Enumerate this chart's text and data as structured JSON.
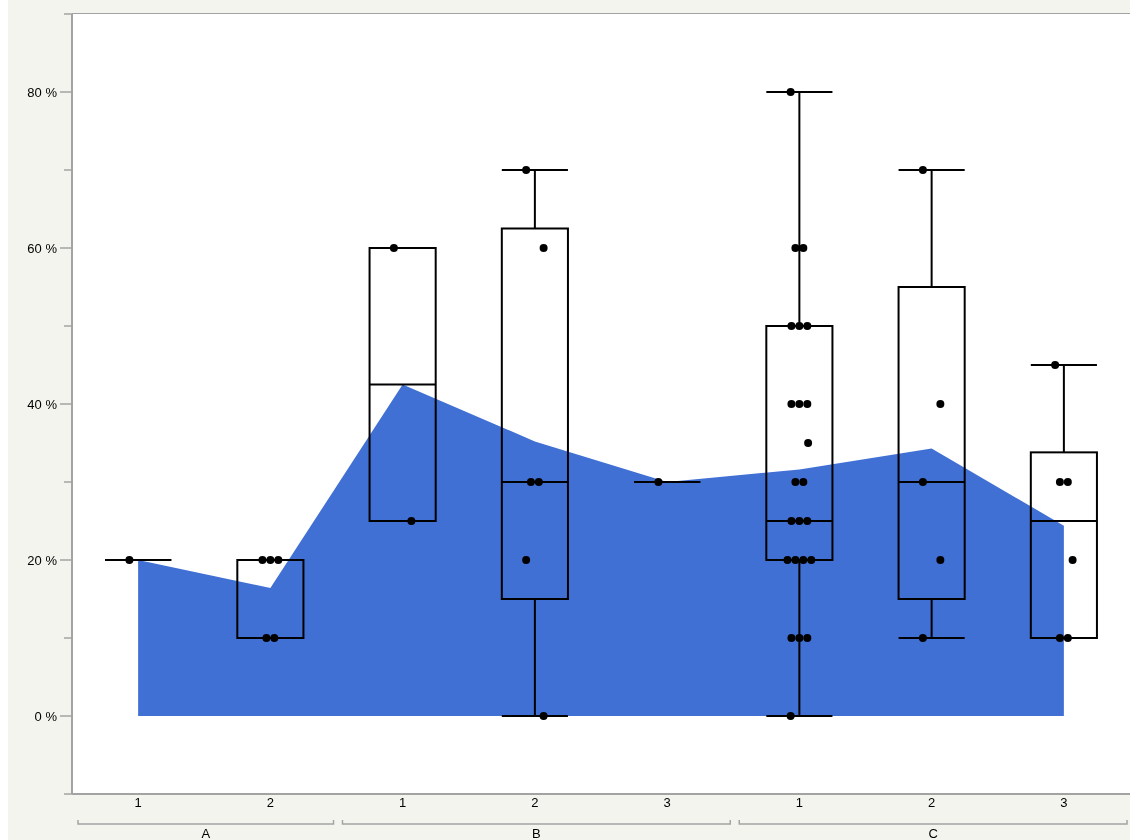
{
  "chart_data": {
    "type": "box",
    "categories": [
      "1",
      "2",
      "1",
      "2",
      "3",
      "1",
      "2",
      "3"
    ],
    "ylim": [
      -10,
      90
    ],
    "yticks": [
      {
        "value": -10,
        "label": null
      },
      {
        "value": 0,
        "label": "0 %"
      },
      {
        "value": 10,
        "label": null
      },
      {
        "value": 20,
        "label": "20 %"
      },
      {
        "value": 30,
        "label": null
      },
      {
        "value": 40,
        "label": "40 %"
      },
      {
        "value": 50,
        "label": null
      },
      {
        "value": 60,
        "label": "60 %"
      },
      {
        "value": 70,
        "label": null
      },
      {
        "value": 80,
        "label": "80 %"
      },
      {
        "value": 90,
        "label": null
      }
    ],
    "annotations": [
      "A",
      "B",
      "C"
    ],
    "series": [
      {
        "type": "area",
        "color": "#4170d4",
        "values": [
          20,
          16.4,
          42.5,
          35.2,
          30,
          31.6,
          34.3,
          24.4
        ]
      },
      {
        "color": "#000000",
        "boxes": [
          {
            "low": 20,
            "q1": 20,
            "median": 20,
            "q3": 20,
            "high": 20,
            "outliers": [
              20
            ]
          },
          {
            "low": 10,
            "q1": 10,
            "median": 20,
            "q3": 20,
            "high": 20,
            "outliers": [
              20,
              20,
              20,
              10,
              10
            ]
          },
          {
            "low": 25,
            "q1": 25,
            "median": 42.5,
            "q3": 60,
            "high": 60,
            "outliers": [
              60,
              25
            ]
          },
          {
            "low": 0,
            "q1": 15,
            "median": 30,
            "q3": 62.5,
            "high": 70,
            "outliers": [
              70,
              60,
              30,
              30,
              20,
              0
            ]
          },
          {
            "low": 30,
            "q1": 30,
            "median": 30,
            "q3": 30,
            "high": 30,
            "outliers": [
              30
            ]
          },
          {
            "low": 0,
            "q1": 20,
            "median": 25,
            "q3": 50,
            "high": 80,
            "outliers": [
              80,
              60,
              60,
              50,
              50,
              50,
              40,
              40,
              40,
              35,
              30,
              30,
              25,
              25,
              25,
              20,
              20,
              20,
              20,
              10,
              10,
              10,
              0
            ]
          },
          {
            "low": 10,
            "q1": 15,
            "median": 30,
            "q3": 55,
            "high": 70,
            "outliers": [
              70,
              40,
              30,
              20,
              10
            ]
          },
          {
            "low": 10,
            "q1": 10,
            "median": 25,
            "q3": 33.8,
            "high": 45,
            "outliers": [
              45,
              30,
              30,
              20,
              10,
              10
            ]
          }
        ]
      }
    ]
  }
}
